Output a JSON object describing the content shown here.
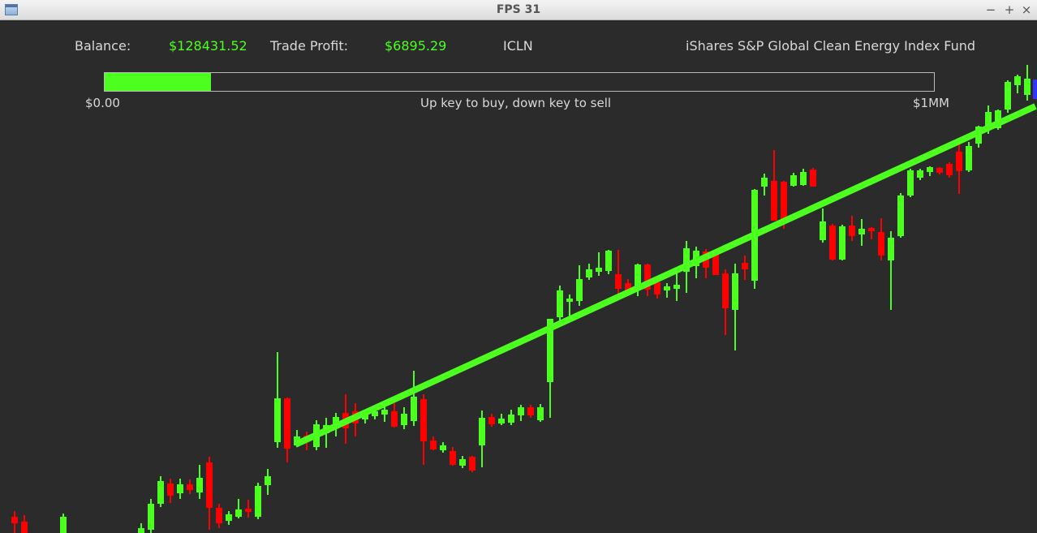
{
  "window": {
    "title": "FPS 31",
    "buttons": {
      "minimize": "−",
      "maximize": "+",
      "close": "×"
    }
  },
  "hud": {
    "balance_label": "Balance:",
    "balance_value": "$128431.52",
    "profit_label": "Trade Profit:",
    "profit_value": "$6895.29",
    "ticker": "ICLN",
    "fund_name": "iShares S&P Global Clean Energy Index Fund"
  },
  "progress": {
    "min_label": "$0.00",
    "max_label": "$1MM",
    "hint": "Up key to buy, down key to sell",
    "fill_fraction": 0.128
  },
  "colors": {
    "up": "#4cff1f",
    "down": "#ff0000",
    "background": "#2b2b2b",
    "trend": "#4cff1f",
    "marker": "#3333ff"
  }
}
